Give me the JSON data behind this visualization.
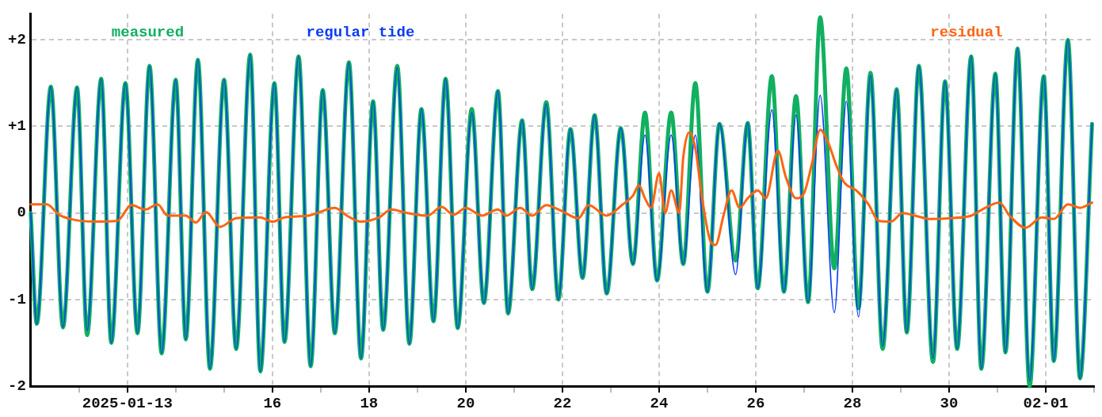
{
  "chart_data": {
    "type": "line",
    "x": [
      "2025-01-11T00:00",
      "2025-01-11T03:00",
      "2025-01-11T10:00",
      "2025-01-11T16:00",
      "2025-01-11T23:00",
      "2025-01-12T04:00",
      "2025-01-12T11:00",
      "2025-01-12T16:00",
      "2025-01-12T23:00",
      "2025-01-13T05:00",
      "2025-01-13T11:00",
      "2025-01-13T17:00",
      "2025-01-14T00:00",
      "2025-01-14T05:00",
      "2025-01-14T11:00",
      "2025-01-14T17:00",
      "2025-01-15T00:00",
      "2025-01-15T06:00",
      "2025-01-15T13:00",
      "2025-01-15T18:00",
      "2025-01-16T01:00",
      "2025-01-16T06:00",
      "2025-01-16T13:00",
      "2025-01-16T19:00",
      "2025-01-17T01:00",
      "2025-01-17T07:00",
      "2025-01-17T14:00",
      "2025-01-17T20:00",
      "2025-01-18T02:00",
      "2025-01-18T07:00",
      "2025-01-18T14:00",
      "2025-01-18T20:00",
      "2025-01-19T02:00",
      "2025-01-19T08:00",
      "2025-01-19T14:00",
      "2025-01-19T20:00",
      "2025-01-20T03:00",
      "2025-01-20T09:00",
      "2025-01-20T16:00",
      "2025-01-20T21:00",
      "2025-01-21T04:00",
      "2025-01-21T09:00",
      "2025-01-21T16:00",
      "2025-01-21T22:00",
      "2025-01-22T04:00",
      "2025-01-22T10:00",
      "2025-01-22T16:00",
      "2025-01-22T22:00",
      "2025-01-23T05:00",
      "2025-01-23T11:00",
      "2025-01-23T17:00",
      "2025-01-23T23:00",
      "2025-01-24T06:00",
      "2025-01-24T12:00",
      "2025-01-24T18:00",
      "2025-01-25T00:00",
      "2025-01-25T06:00",
      "2025-01-25T14:00",
      "2025-01-25T20:00",
      "2025-01-26T01:00",
      "2025-01-26T08:00",
      "2025-01-26T14:00",
      "2025-01-26T20:00",
      "2025-01-27T02:00",
      "2025-01-27T08:00",
      "2025-01-27T15:00",
      "2025-01-27T21:00",
      "2025-01-28T03:00",
      "2025-01-28T09:00",
      "2025-01-28T15:00",
      "2025-01-28T22:00",
      "2025-01-29T03:00",
      "2025-01-29T09:00",
      "2025-01-29T16:00",
      "2025-01-29T22:00",
      "2025-01-30T04:00",
      "2025-01-30T11:00",
      "2025-01-30T16:00",
      "2025-01-30T23:00",
      "2025-01-31T04:00",
      "2025-01-31T10:00",
      "2025-01-31T16:00",
      "2025-01-31T23:00",
      "2025-02-01T04:00",
      "2025-02-01T11:00",
      "2025-02-01T17:00",
      "2025-02-01T23:00"
    ],
    "series": [
      {
        "name": "measured",
        "color": "#10b060",
        "values": [
          0,
          -1.28,
          1.46,
          -1.32,
          1.45,
          -1.41,
          1.55,
          -1.5,
          1.5,
          -1.39,
          1.7,
          -1.62,
          1.54,
          -1.46,
          1.77,
          -1.8,
          1.54,
          -1.57,
          1.83,
          -1.83,
          1.5,
          -1.49,
          1.81,
          -1.77,
          1.42,
          -1.39,
          1.74,
          -1.68,
          1.29,
          -1.35,
          1.7,
          -1.51,
          1.2,
          -1.25,
          1.55,
          -1.33,
          1.2,
          -1.04,
          1.41,
          -1.16,
          1.07,
          -0.88,
          1.28,
          -1.0,
          0.97,
          -0.75,
          1.13,
          -0.93,
          0.98,
          -0.59,
          1.16,
          -0.78,
          1.16,
          -0.59,
          1.5,
          -0.91,
          1.03,
          -0.55,
          1.04,
          -0.87,
          1.58,
          -0.91,
          1.35,
          -1.03,
          2.26,
          -0.64,
          1.67,
          -1.1,
          1.62,
          -1.57,
          1.43,
          -1.38,
          1.7,
          -1.72,
          1.52,
          -1.57,
          1.81,
          -1.8,
          1.61,
          -1.61,
          1.9,
          -2.0,
          1.58,
          -1.71,
          2.0,
          -1.91,
          1.03
        ]
      },
      {
        "name": "regular tide",
        "color": "#0a3cf5",
        "values": [
          0,
          -1.28,
          1.46,
          -1.32,
          1.45,
          -1.36,
          1.55,
          -1.5,
          1.5,
          -1.39,
          1.7,
          -1.62,
          1.54,
          -1.46,
          1.77,
          -1.8,
          1.54,
          -1.57,
          1.83,
          -1.83,
          1.5,
          -1.49,
          1.81,
          -1.77,
          1.42,
          -1.39,
          1.74,
          -1.68,
          1.29,
          -1.35,
          1.68,
          -1.51,
          1.2,
          -1.25,
          1.55,
          -1.33,
          1.16,
          -1.04,
          1.41,
          -1.16,
          1.07,
          -0.88,
          1.26,
          -1.0,
          0.97,
          -0.75,
          1.13,
          -0.93,
          0.98,
          -0.59,
          0.9,
          -0.78,
          0.9,
          -0.59,
          0.9,
          -0.91,
          1.03,
          -0.71,
          1.04,
          -0.87,
          1.19,
          -0.91,
          1.13,
          -1.03,
          1.36,
          -1.15,
          1.29,
          -1.2,
          1.59,
          -1.54,
          1.43,
          -1.38,
          1.7,
          -1.68,
          1.52,
          -1.57,
          1.81,
          -1.8,
          1.61,
          -1.61,
          1.9,
          -1.94,
          1.58,
          -1.71,
          2.0,
          -1.91,
          1.03
        ]
      },
      {
        "name": "residual",
        "color": "#ff6414",
        "x": [
          "2025-01-11T00:00",
          "2025-01-11T08:00",
          "2025-01-11T14:00",
          "2025-01-11T20:00",
          "2025-01-12T08:00",
          "2025-01-12T19:00",
          "2025-01-13T02:00",
          "2025-01-13T09:00",
          "2025-01-13T15:00",
          "2025-01-13T20:00",
          "2025-01-14T05:00",
          "2025-01-14T10:00",
          "2025-01-14T15:00",
          "2025-01-14T22:00",
          "2025-01-15T06:00",
          "2025-01-15T18:00",
          "2025-01-16T00:00",
          "2025-01-16T06:00",
          "2025-01-16T18:00",
          "2025-01-17T07:00",
          "2025-01-17T13:00",
          "2025-01-17T20:00",
          "2025-01-18T05:00",
          "2025-01-18T11:00",
          "2025-01-18T19:00",
          "2025-01-19T05:00",
          "2025-01-19T12:00",
          "2025-01-19T18:00",
          "2025-01-20T00:00",
          "2025-01-20T08:00",
          "2025-01-20T16:00",
          "2025-01-20T20:00",
          "2025-01-21T03:00",
          "2025-01-21T09:00",
          "2025-01-21T16:00",
          "2025-01-21T23:00",
          "2025-01-22T08:00",
          "2025-01-22T13:00",
          "2025-01-22T22:00",
          "2025-01-23T06:00",
          "2025-01-23T11:00",
          "2025-01-23T14:00",
          "2025-01-23T17:00",
          "2025-01-23T20:00",
          "2025-01-24T00:00",
          "2025-01-24T03:00",
          "2025-01-24T06:00",
          "2025-01-24T10:00",
          "2025-01-24T12:00",
          "2025-01-24T15:00",
          "2025-01-24T18:00",
          "2025-01-24T21:00",
          "2025-01-25T01:00",
          "2025-01-25T04:00",
          "2025-01-25T08:00",
          "2025-01-25T12:00",
          "2025-01-25T16:00",
          "2025-01-25T20:00",
          "2025-01-26T01:00",
          "2025-01-26T05:00",
          "2025-01-26T11:00",
          "2025-01-26T15:00",
          "2025-01-26T20:00",
          "2025-01-27T00:00",
          "2025-01-27T04:00",
          "2025-01-27T08:00",
          "2025-01-27T12:00",
          "2025-01-27T16:00",
          "2025-01-27T20:00",
          "2025-01-28T02:00",
          "2025-01-28T08:00",
          "2025-01-28T13:00",
          "2025-01-28T19:00",
          "2025-01-29T01:00",
          "2025-01-29T07:00",
          "2025-01-29T15:00",
          "2025-01-30T01:00",
          "2025-01-30T11:00",
          "2025-01-30T18:00",
          "2025-01-31T01:00",
          "2025-01-31T06:00",
          "2025-01-31T14:00",
          "2025-01-31T22:00",
          "2025-02-01T04:00",
          "2025-02-01T11:00",
          "2025-02-01T17:00",
          "2025-02-01T23:00"
        ],
        "values": [
          0.1,
          0.1,
          -0.02,
          -0.07,
          -0.1,
          -0.09,
          0.09,
          0.04,
          0.1,
          -0.03,
          -0.03,
          -0.11,
          0.01,
          -0.16,
          -0.06,
          -0.05,
          -0.1,
          -0.05,
          -0.03,
          0.06,
          -0.03,
          -0.1,
          -0.05,
          0.04,
          0,
          -0.03,
          0.07,
          -0.02,
          0.06,
          -0.03,
          0.04,
          -0.03,
          0.06,
          -0.03,
          0.09,
          0.03,
          -0.06,
          0.09,
          -0.03,
          0.1,
          0.2,
          0.32,
          0.17,
          0.06,
          0.46,
          0,
          0.26,
          0,
          0.64,
          0.93,
          0.75,
          0.23,
          -0.29,
          -0.37,
          -0.03,
          0.26,
          0.06,
          0.17,
          0.26,
          0.17,
          0.72,
          0.41,
          0.17,
          0.23,
          0.58,
          0.96,
          0.81,
          0.55,
          0.35,
          0.26,
          0.1,
          -0.09,
          -0.1,
          0,
          -0.03,
          -0.07,
          -0.06,
          -0.03,
          0.06,
          0.12,
          -0.03,
          -0.17,
          -0.05,
          -0.07,
          0.1,
          0.06,
          0.12
        ]
      }
    ],
    "xlim": [
      "2025-01-11",
      "2025-02-02"
    ],
    "xticks": [
      {
        "value": "2025-01-12",
        "label": null
      },
      {
        "value": "2025-01-13",
        "label": "2025-01-13"
      },
      {
        "value": "2025-01-14",
        "label": null
      },
      {
        "value": "2025-01-15",
        "label": null
      },
      {
        "value": "2025-01-16",
        "label": "16"
      },
      {
        "value": "2025-01-17",
        "label": null
      },
      {
        "value": "2025-01-18",
        "label": "18"
      },
      {
        "value": "2025-01-19",
        "label": null
      },
      {
        "value": "2025-01-20",
        "label": "20"
      },
      {
        "value": "2025-01-21",
        "label": null
      },
      {
        "value": "2025-01-22",
        "label": "22"
      },
      {
        "value": "2025-01-23",
        "label": null
      },
      {
        "value": "2025-01-24",
        "label": "24"
      },
      {
        "value": "2025-01-25",
        "label": null
      },
      {
        "value": "2025-01-26",
        "label": "26"
      },
      {
        "value": "2025-01-27",
        "label": null
      },
      {
        "value": "2025-01-28",
        "label": "28"
      },
      {
        "value": "2025-01-29",
        "label": null
      },
      {
        "value": "2025-01-30",
        "label": "30"
      },
      {
        "value": "2025-01-31",
        "label": null
      },
      {
        "value": "2025-02-01",
        "label": "02-01"
      },
      {
        "value": "2025-02-02",
        "label": null
      }
    ],
    "ylim": [
      -2,
      2.3
    ],
    "yticks": [
      {
        "value": -2,
        "label": "-2"
      },
      {
        "value": -1,
        "label": "-1"
      },
      0,
      {
        "value": 1,
        "label": "+1"
      },
      {
        "value": 2,
        "label": "+2"
      }
    ],
    "grid": true,
    "legend": "top",
    "marker": "none",
    "line_style": "solid"
  }
}
